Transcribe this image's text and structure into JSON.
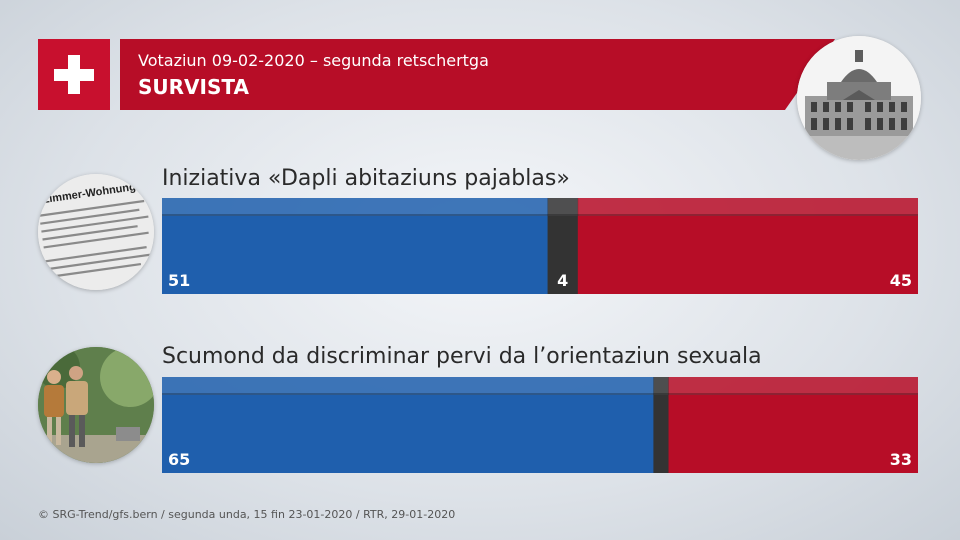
{
  "header": {
    "subtitle": "Votaziun 09-02-2020 – segunda retschertga",
    "title": "SURVISTA"
  },
  "images": {
    "news_text": "-Zimmer-Wohnung"
  },
  "colors": {
    "yes": "#1f5fad",
    "undecided": "#333333",
    "no": "#b70d27",
    "flag": "#c8102e"
  },
  "chart_data": [
    {
      "type": "bar",
      "orientation": "horizontal-stacked",
      "title": "Iniziativa «Dapli abitaziuns pajablas»",
      "segments": [
        {
          "key": "yes",
          "value": 51,
          "label": "51"
        },
        {
          "key": "undecided",
          "value": 4,
          "label": "4"
        },
        {
          "key": "no",
          "value": 45,
          "label": "45"
        }
      ],
      "xlim": [
        0,
        100
      ]
    },
    {
      "type": "bar",
      "orientation": "horizontal-stacked",
      "title": "Scumond da discriminar pervi da l’orientaziun sexuala",
      "segments": [
        {
          "key": "yes",
          "value": 65,
          "label": "65"
        },
        {
          "key": "undecided",
          "value": 2,
          "label": ""
        },
        {
          "key": "no",
          "value": 33,
          "label": "33"
        }
      ],
      "xlim": [
        0,
        100
      ]
    }
  ],
  "footer": {
    "source": "© SRG-Trend/gfs.bern  /  segunda unda, 15 fin 23-01-2020  / RTR, 29-01-2020"
  }
}
